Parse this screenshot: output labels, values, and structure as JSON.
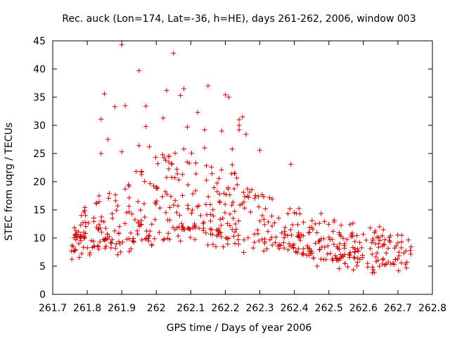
{
  "chart_data": {
    "type": "scatter",
    "title": "Rec. auck (Lon=174, Lat=-36, h=HE), days 261-262, 2006, window 003",
    "xlabel": "GPS time / Days of year 2006",
    "ylabel": "STEC from uqrg / TECUs",
    "xlim": [
      261.7,
      262.8
    ],
    "ylim": [
      0,
      45
    ],
    "xticks": [
      "261.7",
      "261.8",
      "261.9",
      "262",
      "262.1",
      "262.2",
      "262.3",
      "262.4",
      "262.5",
      "262.6",
      "262.7",
      "262.8"
    ],
    "yticks": [
      "0",
      "5",
      "10",
      "15",
      "20",
      "25",
      "30",
      "35",
      "40",
      "45"
    ],
    "grid": false,
    "marker": "+",
    "color": "#cc0000",
    "x_range": [
      261.75,
      262.74
    ],
    "outliers": [
      [
        261.9,
        44.3
      ],
      [
        262.05,
        42.8
      ],
      [
        261.95,
        39.7
      ],
      [
        262.15,
        37.0
      ],
      [
        262.08,
        36.5
      ],
      [
        262.03,
        36.2
      ],
      [
        261.85,
        35.6
      ],
      [
        262.2,
        35.4
      ],
      [
        262.21,
        35.0
      ],
      [
        262.07,
        35.3
      ],
      [
        261.97,
        33.4
      ],
      [
        261.91,
        33.5
      ],
      [
        261.88,
        33.3
      ],
      [
        262.12,
        32.3
      ],
      [
        262.25,
        31.5
      ],
      [
        262.24,
        31.0
      ],
      [
        261.84,
        31.1
      ],
      [
        262.02,
        31.3
      ],
      [
        262.24,
        30.0
      ],
      [
        261.97,
        29.8
      ],
      [
        262.09,
        29.7
      ],
      [
        262.14,
        29.2
      ],
      [
        262.24,
        29.2
      ],
      [
        262.19,
        29.0
      ],
      [
        262.26,
        28.4
      ],
      [
        261.86,
        27.5
      ],
      [
        261.98,
        26.2
      ],
      [
        261.95,
        26.4
      ],
      [
        262.14,
        26.0
      ],
      [
        262.3,
        25.6
      ],
      [
        262.08,
        25.8
      ],
      [
        261.9,
        25.3
      ],
      [
        262.22,
        25.8
      ],
      [
        261.84,
        25.0
      ],
      [
        262.39,
        23.1
      ],
      [
        262.22,
        23.0
      ]
    ],
    "band": [
      [
        261.75,
        7.5,
        12.5
      ],
      [
        261.8,
        8.0,
        16.0
      ],
      [
        261.85,
        8.5,
        18.5
      ],
      [
        261.9,
        9.0,
        21.0
      ],
      [
        261.95,
        9.5,
        22.0
      ],
      [
        262.0,
        10.5,
        24.5
      ],
      [
        262.05,
        11.5,
        25.5
      ],
      [
        262.1,
        11.5,
        25.5
      ],
      [
        262.15,
        10.8,
        24.0
      ],
      [
        262.2,
        10.0,
        22.5
      ],
      [
        262.25,
        9.5,
        21.0
      ],
      [
        262.3,
        9.3,
        18.5
      ],
      [
        262.35,
        8.5,
        17.0
      ],
      [
        262.4,
        7.5,
        16.5
      ],
      [
        262.45,
        6.5,
        15.5
      ],
      [
        262.5,
        6.0,
        14.0
      ],
      [
        262.55,
        6.0,
        13.0
      ],
      [
        262.6,
        6.0,
        13.0
      ],
      [
        262.65,
        5.5,
        12.0
      ],
      [
        262.7,
        5.0,
        11.0
      ],
      [
        262.74,
        4.5,
        10.5
      ]
    ],
    "point_count": 600
  }
}
